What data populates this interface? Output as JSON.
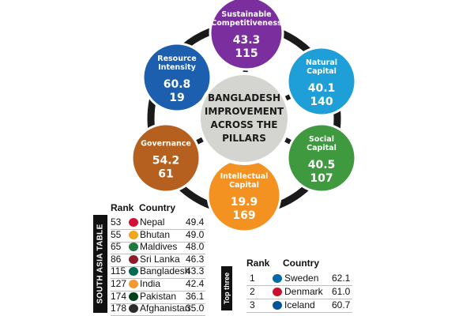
{
  "center": {
    "lines": [
      "BANGLADESH",
      "IMPROVEMENT",
      "ACROSS THE",
      "PILLARS"
    ]
  },
  "pillars": [
    {
      "label_lines": [
        "Sustainable",
        "Competitiveness"
      ],
      "score": "43.3",
      "rank": "115",
      "color": "#7b2f9e"
    },
    {
      "label_lines": [
        "Natural",
        "Capital"
      ],
      "score": "40.1",
      "rank": "140",
      "color": "#1f9fd8"
    },
    {
      "label_lines": [
        "Social",
        "Capital"
      ],
      "score": "40.5",
      "rank": "107",
      "color": "#3f9a3f"
    },
    {
      "label_lines": [
        "Intellectual",
        "Capital"
      ],
      "score": "19.9",
      "rank": "169",
      "color": "#f39221"
    },
    {
      "label_lines": [
        "Governance"
      ],
      "score": "54.2",
      "rank": "61",
      "color": "#b5601f"
    },
    {
      "label_lines": [
        "Resource",
        "Intensity"
      ],
      "score": "60.8",
      "rank": "19",
      "color": "#1b5fae"
    }
  ],
  "south_asia": {
    "tab_label": "SOUTH ASIA TABLE",
    "headers": {
      "rank": "Rank",
      "country": "Country"
    },
    "rows": [
      {
        "rank": "53",
        "country": "Nepal",
        "score": "49.4",
        "flag": "#d21034"
      },
      {
        "rank": "55",
        "country": "Bhutan",
        "score": "49.0",
        "flag": "#f2a51f"
      },
      {
        "rank": "65",
        "country": "Maldives",
        "score": "48.0",
        "flag": "#1d7a3a"
      },
      {
        "rank": "86",
        "country": "Sri Lanka",
        "score": "46.3",
        "flag": "#8d1b2a"
      },
      {
        "rank": "115",
        "country": "Bangladesh",
        "score": "43.3",
        "flag": "#006a4e"
      },
      {
        "rank": "127",
        "country": "India",
        "score": "42.4",
        "flag": "#f29933"
      },
      {
        "rank": "174",
        "country": "Pakistan",
        "score": "36.1",
        "flag": "#01411c"
      },
      {
        "rank": "178",
        "country": "Afghanistan",
        "score": "35.0",
        "flag": "#2b2b2b"
      }
    ]
  },
  "top_three": {
    "tab_label": "Top three",
    "headers": {
      "rank": "Rank",
      "country": "Country"
    },
    "rows": [
      {
        "rank": "1",
        "country": "Sweden",
        "score": "62.1",
        "flag": "#006aa7"
      },
      {
        "rank": "2",
        "country": "Denmark",
        "score": "61.0",
        "flag": "#c8102e"
      },
      {
        "rank": "3",
        "country": "Iceland",
        "score": "60.7",
        "flag": "#02529c"
      }
    ]
  }
}
